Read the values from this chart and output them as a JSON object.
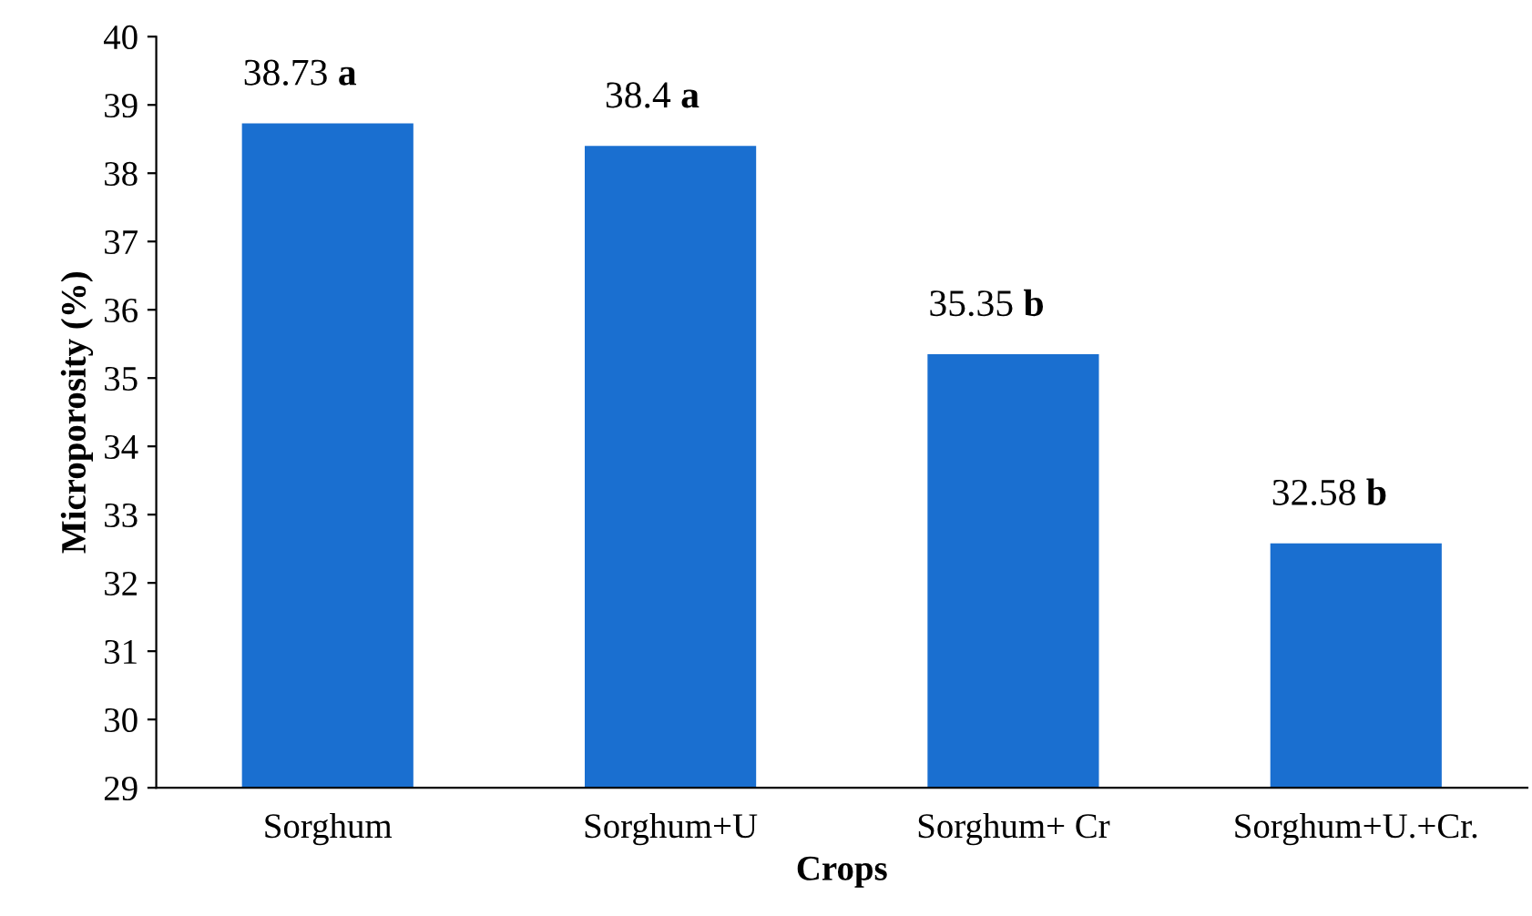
{
  "chart_data": {
    "type": "bar",
    "xlabel": "Crops",
    "ylabel": "Microporosity (%)",
    "categories": [
      "Sorghum",
      "Sorghum+U",
      "Sorghum+ Cr",
      "Sorghum+U.+Cr."
    ],
    "values": [
      38.73,
      38.4,
      35.35,
      32.58
    ],
    "value_labels": [
      "38.73 a",
      "38.4 a",
      "35.35 b",
      "32.58 b"
    ],
    "color": "#1a6fd0",
    "ylim": [
      29,
      40
    ],
    "yticks": [
      29,
      30,
      31,
      32,
      33,
      34,
      35,
      36,
      37,
      38,
      39,
      40
    ],
    "grid": false,
    "legend": false
  }
}
